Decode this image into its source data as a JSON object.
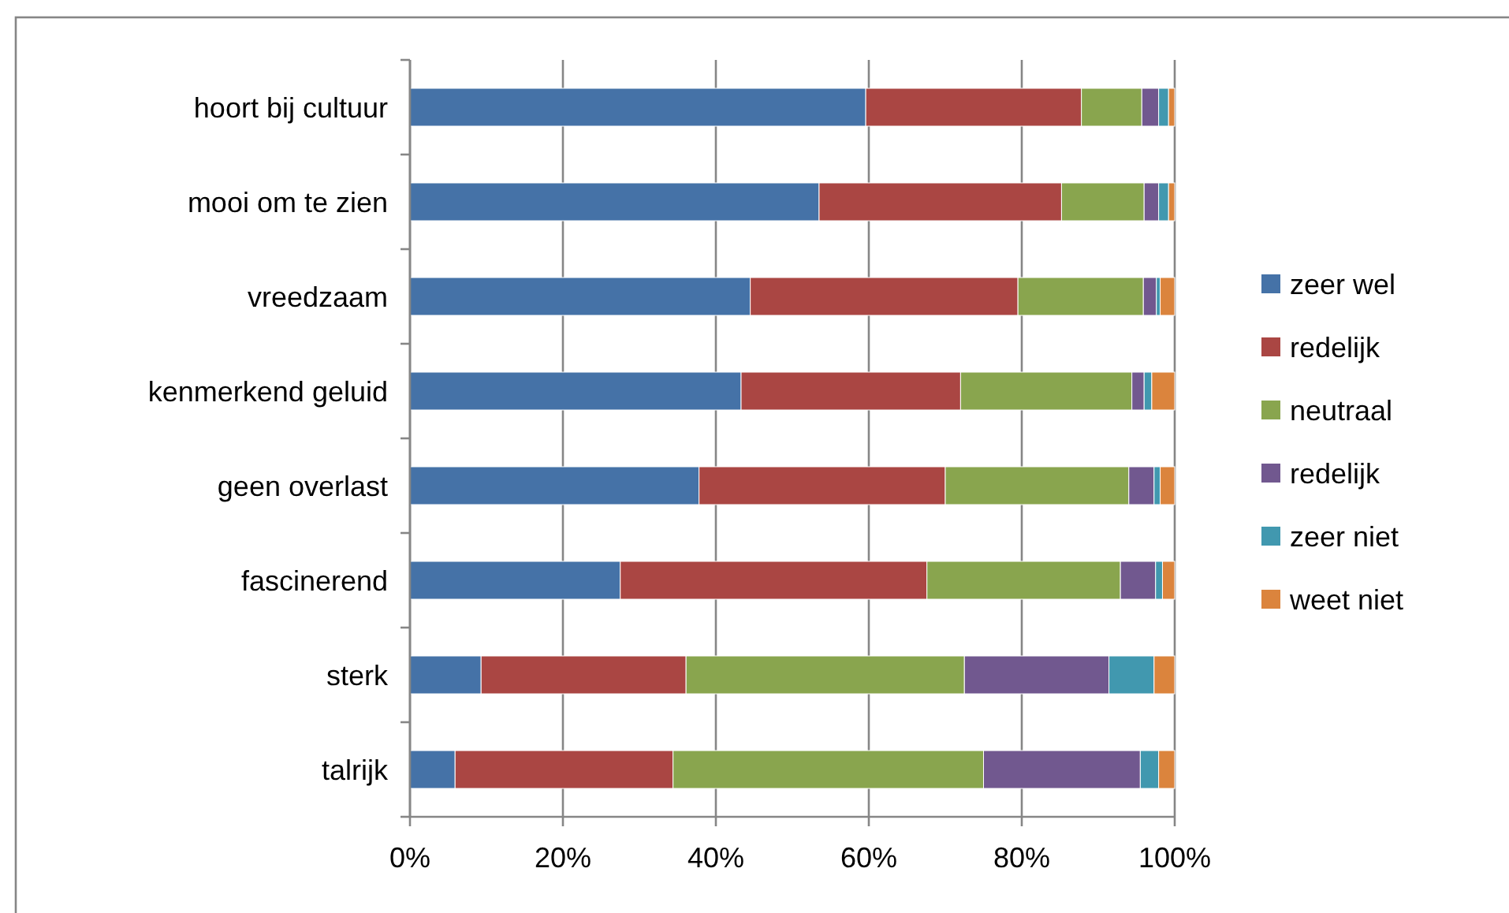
{
  "chart_data": {
    "type": "bar",
    "orientation": "horizontal",
    "stacked": true,
    "categories": [
      "hoort bij cultuur",
      "mooi om te zien",
      "vreedzaam",
      "kenmerkend geluid",
      "geen overlast",
      "fascinerend",
      "sterk",
      "talrijk"
    ],
    "series": [
      {
        "name": "zeer wel",
        "color": "#4572a7",
        "values": [
          59.6,
          53.5,
          44.5,
          43.3,
          37.8,
          27.5,
          9.3,
          5.9
        ]
      },
      {
        "name": "redelijk",
        "color": "#aa4643",
        "values": [
          28.2,
          31.7,
          35.0,
          28.7,
          32.2,
          40.1,
          26.8,
          28.5
        ]
      },
      {
        "name": "neutraal",
        "color": "#89a54e",
        "values": [
          7.9,
          10.8,
          16.4,
          22.4,
          24.0,
          25.3,
          36.4,
          40.6
        ]
      },
      {
        "name": "redelijk",
        "color": "#71588f",
        "values": [
          2.2,
          1.9,
          1.7,
          1.6,
          3.3,
          4.6,
          18.9,
          20.5
        ]
      },
      {
        "name": "zeer niet",
        "color": "#4198af",
        "values": [
          1.3,
          1.3,
          0.5,
          1.0,
          0.8,
          0.9,
          5.9,
          2.4
        ]
      },
      {
        "name": "weet niet",
        "color": "#db843d",
        "values": [
          0.8,
          0.8,
          1.9,
          3.0,
          1.9,
          1.6,
          2.7,
          2.1
        ]
      }
    ],
    "xlim": [
      0,
      100
    ],
    "xticks": [
      {
        "value": 0,
        "label": "0%"
      },
      {
        "value": 20,
        "label": "20%"
      },
      {
        "value": 40,
        "label": "40%"
      },
      {
        "value": 60,
        "label": "60%"
      },
      {
        "value": 80,
        "label": "80%"
      },
      {
        "value": 100,
        "label": "100%"
      }
    ],
    "grid": "x",
    "legend": "right"
  }
}
